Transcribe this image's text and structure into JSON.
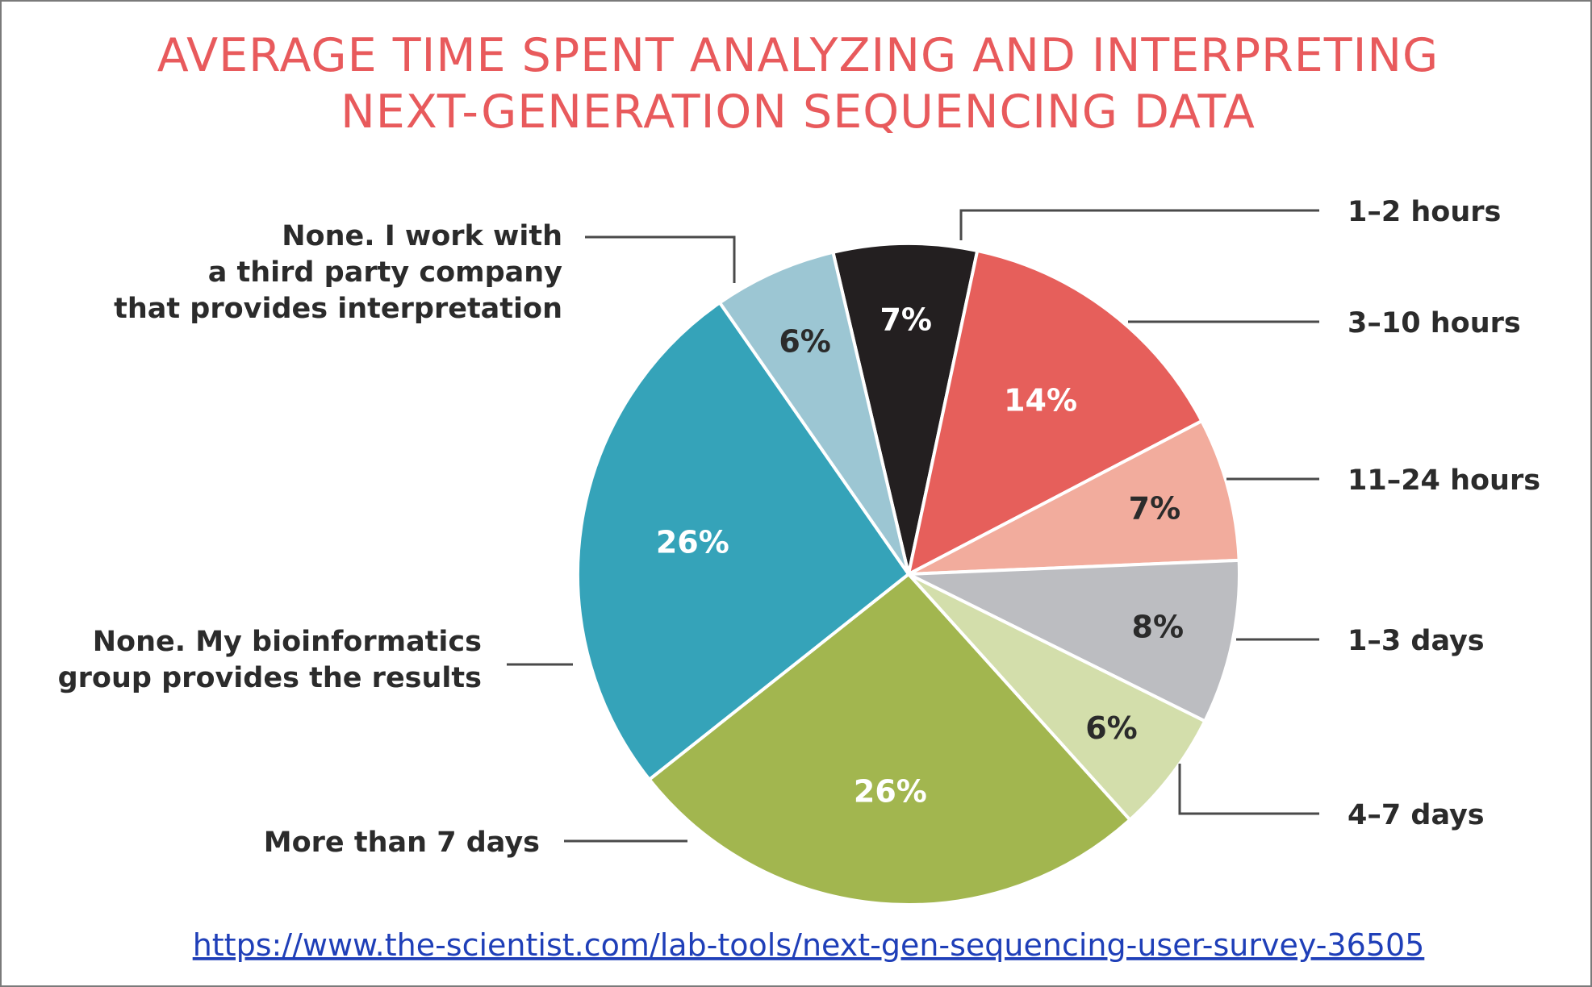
{
  "chart_data": {
    "type": "pie",
    "title": [
      "AVERAGE TIME SPENT ANALYZING AND INTERPRETING",
      "NEXT-GENERATION SEQUENCING DATA"
    ],
    "start_angle_deg": -13.2,
    "slices": [
      {
        "label": [
          "1–2 hours"
        ],
        "value": 7,
        "value_label": "7%",
        "color": "#231f20",
        "text_color": "#ffffff"
      },
      {
        "label": [
          "3–10 hours"
        ],
        "value": 14,
        "value_label": "14%",
        "color": "#e65f5b",
        "text_color": "#ffffff"
      },
      {
        "label": [
          "11–24 hours"
        ],
        "value": 7,
        "value_label": "7%",
        "color": "#f2ac9d",
        "text_color": "#2b2b2b"
      },
      {
        "label": [
          "1–3 days"
        ],
        "value": 8,
        "value_label": "8%",
        "color": "#bcbdc1",
        "text_color": "#2b2b2b"
      },
      {
        "label": [
          "4–7 days"
        ],
        "value": 6,
        "value_label": "6%",
        "color": "#d3deab",
        "text_color": "#2b2b2b"
      },
      {
        "label": [
          "More than 7 days"
        ],
        "value": 26,
        "value_label": "26%",
        "color": "#a2b64f",
        "text_color": "#ffffff"
      },
      {
        "label": [
          "None. My bioinformatics",
          "group provides the results"
        ],
        "value": 26,
        "value_label": "26%",
        "color": "#35a3b9",
        "text_color": "#ffffff"
      },
      {
        "label": [
          "None. I work with",
          "a third party company",
          "that provides interpretation"
        ],
        "value": 6,
        "value_label": "6%",
        "color": "#9cc6d3",
        "text_color": "#2b2b2b"
      }
    ]
  },
  "source": {
    "url_text": "https://www.the-scientist.com/lab-tools/next-gen-sequencing-user-survey-36505"
  }
}
